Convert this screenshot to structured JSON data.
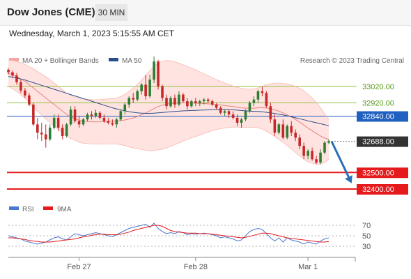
{
  "header": {
    "title": "Dow Jones (CME)",
    "timeframe": "30 MIN"
  },
  "datetime": "Wednesday, March 1, 2023 5:15:55 AM CET",
  "legend": {
    "ma20": "MA 20 + Bollinger Bands",
    "ma50": "MA 50",
    "credit": "Research © 2023 Trading Central",
    "rsi": "RSI",
    "ma9": "9MA"
  },
  "colors": {
    "support": "#e41a1c",
    "pivot": "#2060c0",
    "resistance": "#8fbf3f",
    "current": "#333333",
    "candle_up": "#2e7d32",
    "candle_down": "#c62828",
    "band": "#ffd9d6"
  },
  "chart_data": {
    "type": "candlestick",
    "x_ticks": [
      "Feb 27",
      "Feb 28",
      "Mar 1"
    ],
    "y_range": [
      32320,
      33120
    ],
    "levels": [
      {
        "label": "33020.00",
        "value": 33020,
        "kind": "resistance"
      },
      {
        "label": "32920.00",
        "value": 32920,
        "kind": "resistance"
      },
      {
        "label": "32840.00",
        "value": 32840,
        "kind": "pivot"
      },
      {
        "label": "32688.00",
        "value": 32688,
        "kind": "current"
      },
      {
        "label": "32500.00",
        "value": 32500,
        "kind": "support"
      },
      {
        "label": "32400.00",
        "value": 32400,
        "kind": "support"
      }
    ],
    "candles": [
      [
        33120,
        33130,
        33090,
        33105
      ],
      [
        33105,
        33115,
        33070,
        33085
      ],
      [
        33085,
        33100,
        33030,
        33045
      ],
      [
        33045,
        33060,
        32980,
        32995
      ],
      [
        32995,
        33010,
        32950,
        32965
      ],
      [
        32965,
        32980,
        32900,
        32910
      ],
      [
        32910,
        32920,
        32780,
        32790
      ],
      [
        32790,
        32830,
        32700,
        32740
      ],
      [
        32740,
        32800,
        32690,
        32730
      ],
      [
        32730,
        32790,
        32650,
        32700
      ],
      [
        32700,
        32790,
        32690,
        32770
      ],
      [
        32770,
        32850,
        32760,
        32830
      ],
      [
        32830,
        32850,
        32750,
        32770
      ],
      [
        32770,
        32790,
        32700,
        32720
      ],
      [
        32720,
        32800,
        32710,
        32790
      ],
      [
        32790,
        32900,
        32780,
        32880
      ],
      [
        32880,
        32900,
        32800,
        32810
      ],
      [
        32810,
        32840,
        32770,
        32790
      ],
      [
        32790,
        32830,
        32780,
        32820
      ],
      [
        32820,
        32860,
        32810,
        32850
      ],
      [
        32850,
        32870,
        32820,
        32840
      ],
      [
        32840,
        32880,
        32830,
        32860
      ],
      [
        32860,
        32870,
        32820,
        32830
      ],
      [
        32830,
        32850,
        32800,
        32810
      ],
      [
        32810,
        32830,
        32790,
        32800
      ],
      [
        32800,
        32820,
        32780,
        32790
      ],
      [
        32790,
        32830,
        32770,
        32820
      ],
      [
        32820,
        32880,
        32810,
        32870
      ],
      [
        32870,
        32920,
        32850,
        32910
      ],
      [
        32910,
        32960,
        32890,
        32950
      ],
      [
        32950,
        32980,
        32920,
        32940
      ],
      [
        32940,
        33000,
        32930,
        32990
      ],
      [
        32990,
        33040,
        32970,
        33030
      ],
      [
        33030,
        33090,
        32940,
        32960
      ],
      [
        32960,
        33090,
        32950,
        33060
      ],
      [
        33060,
        33200,
        33040,
        33170
      ],
      [
        33170,
        33180,
        33000,
        33020
      ],
      [
        33020,
        33030,
        32930,
        32950
      ],
      [
        32950,
        32970,
        32880,
        32900
      ],
      [
        32900,
        32960,
        32890,
        32950
      ],
      [
        32950,
        32970,
        32890,
        32910
      ],
      [
        32910,
        32990,
        32900,
        32970
      ],
      [
        32970,
        32980,
        32920,
        32930
      ],
      [
        32930,
        32950,
        32880,
        32900
      ],
      [
        32900,
        32940,
        32890,
        32930
      ],
      [
        32930,
        32950,
        32900,
        32920
      ],
      [
        32920,
        32940,
        32900,
        32930
      ],
      [
        32930,
        32950,
        32910,
        32940
      ],
      [
        32940,
        32950,
        32920,
        32930
      ],
      [
        32930,
        32940,
        32900,
        32910
      ],
      [
        32910,
        32920,
        32880,
        32890
      ],
      [
        32890,
        32900,
        32850,
        32860
      ],
      [
        32860,
        32880,
        32840,
        32870
      ],
      [
        32870,
        32880,
        32830,
        32850
      ],
      [
        32850,
        32870,
        32820,
        32830
      ],
      [
        32830,
        32850,
        32780,
        32800
      ],
      [
        32800,
        32830,
        32770,
        32820
      ],
      [
        32820,
        32880,
        32810,
        32870
      ],
      [
        32870,
        32930,
        32860,
        32920
      ],
      [
        32920,
        32960,
        32900,
        32940
      ],
      [
        32940,
        33000,
        32920,
        32990
      ],
      [
        32990,
        33020,
        32960,
        32980
      ],
      [
        32980,
        32990,
        32890,
        32900
      ],
      [
        32900,
        32920,
        32800,
        32820
      ],
      [
        32820,
        32850,
        32720,
        32740
      ],
      [
        32740,
        32800,
        32730,
        32790
      ],
      [
        32790,
        32820,
        32700,
        32710
      ],
      [
        32710,
        32790,
        32700,
        32780
      ],
      [
        32780,
        32810,
        32720,
        32740
      ],
      [
        32740,
        32760,
        32690,
        32710
      ],
      [
        32710,
        32730,
        32640,
        32660
      ],
      [
        32660,
        32680,
        32580,
        32600
      ],
      [
        32600,
        32640,
        32580,
        32630
      ],
      [
        32630,
        32650,
        32570,
        32580
      ],
      [
        32580,
        32600,
        32550,
        32560
      ],
      [
        32560,
        32640,
        32550,
        32620
      ],
      [
        32620,
        32690,
        32610,
        32680
      ],
      [
        32680,
        32700,
        32670,
        32690
      ]
    ],
    "ma20": [
      33100,
      33090,
      33080,
      33065,
      33050,
      33030,
      33010,
      32990,
      32970,
      32950,
      32930,
      32910,
      32890,
      32870,
      32850,
      32835,
      32825,
      32815,
      32810,
      32808,
      32806,
      32805,
      32806,
      32807,
      32808,
      32809,
      32811,
      32813,
      32817,
      32822,
      32829,
      32838,
      32848,
      32860,
      32872,
      32886,
      32898,
      32906,
      32912,
      32916,
      32918,
      32919,
      32920,
      32920,
      32919,
      32918,
      32917,
      32916,
      32914,
      32912,
      32910,
      32907,
      32904,
      32901,
      32898,
      32894,
      32890,
      32888,
      32887,
      32888,
      32890,
      32891,
      32889,
      32885,
      32878,
      32870,
      32860,
      32848,
      32835,
      32820,
      32804,
      32786,
      32768,
      32752,
      32736,
      32720,
      32708,
      32700
    ],
    "bb_upper": [
      33180,
      33175,
      33170,
      33162,
      33152,
      33140,
      33126,
      33110,
      33094,
      33078,
      33060,
      33040,
      33020,
      33000,
      32980,
      32965,
      32955,
      32948,
      32944,
      32942,
      32940,
      32939,
      32940,
      32942,
      32944,
      32946,
      32950,
      32958,
      32972,
      32990,
      33010,
      33032,
      33058,
      33086,
      33114,
      33140,
      33160,
      33172,
      33176,
      33174,
      33168,
      33160,
      33150,
      33140,
      33130,
      33120,
      33108,
      33096,
      33084,
      33072,
      33060,
      33050,
      33040,
      33030,
      33022,
      33014,
      33008,
      33004,
      33002,
      33004,
      33010,
      33020,
      33030,
      33036,
      33040,
      33040,
      33038,
      33034,
      33028,
      33020,
      33008,
      32992,
      32972,
      32948,
      32922,
      32890,
      32856,
      32820
    ],
    "bb_lower": [
      33020,
      33005,
      32990,
      32968,
      32948,
      32920,
      32894,
      32870,
      32846,
      32822,
      32800,
      32780,
      32760,
      32740,
      32720,
      32705,
      32695,
      32682,
      32676,
      32674,
      32672,
      32671,
      32672,
      32672,
      32672,
      32672,
      32672,
      32668,
      32662,
      32654,
      32648,
      32644,
      32638,
      32634,
      32630,
      32632,
      32636,
      32640,
      32648,
      32658,
      32668,
      32678,
      32690,
      32700,
      32708,
      32716,
      32726,
      32736,
      32744,
      32752,
      32760,
      32764,
      32768,
      32772,
      32774,
      32774,
      32772,
      32772,
      32772,
      32772,
      32770,
      32762,
      32748,
      32734,
      32716,
      32700,
      32682,
      32662,
      32642,
      32620,
      32600,
      32580,
      32564,
      32556,
      32550,
      32550,
      32560,
      32580
    ],
    "ma50": [
      33080,
      33075,
      33070,
      33064,
      33058,
      33050,
      33042,
      33034,
      33026,
      33018,
      33010,
      33002,
      32994,
      32986,
      32978,
      32970,
      32962,
      32954,
      32946,
      32938,
      32930,
      32922,
      32914,
      32906,
      32898,
      32890,
      32884,
      32878,
      32872,
      32867,
      32863,
      32860,
      32858,
      32857,
      32857,
      32858,
      32860,
      32862,
      32864,
      32866,
      32868,
      32870,
      32872,
      32873,
      32874,
      32875,
      32876,
      32877,
      32878,
      32879,
      32880,
      32880,
      32880,
      32879,
      32878,
      32876,
      32874,
      32872,
      32870,
      32869,
      32868,
      32866,
      32863,
      32860,
      32856,
      32852,
      32847,
      32842,
      32836,
      32830,
      32824,
      32818,
      32812,
      32806,
      32800,
      32794,
      32788,
      32782
    ],
    "rsi": [
      50,
      48,
      46,
      44,
      40,
      38,
      36,
      34,
      36,
      38,
      42,
      46,
      48,
      44,
      42,
      48,
      54,
      52,
      50,
      52,
      54,
      56,
      54,
      52,
      50,
      48,
      52,
      56,
      60,
      64,
      66,
      68,
      70,
      72,
      66,
      74,
      64,
      58,
      54,
      56,
      54,
      58,
      56,
      52,
      54,
      53,
      54,
      55,
      54,
      52,
      50,
      46,
      48,
      46,
      44,
      40,
      42,
      50,
      58,
      62,
      64,
      62,
      54,
      46,
      40,
      46,
      38,
      46,
      42,
      40,
      38,
      34,
      38,
      36,
      34,
      40,
      44,
      46
    ],
    "rsi_ma9": [
      46,
      46,
      45,
      44,
      43,
      41,
      40,
      39,
      38,
      38,
      38,
      39,
      40,
      41,
      42,
      43,
      44,
      46,
      48,
      49,
      51,
      52,
      53,
      53,
      52,
      52,
      52,
      53,
      55,
      57,
      60,
      62,
      64,
      66,
      68,
      70,
      70,
      68,
      64,
      60,
      58,
      57,
      56,
      55,
      55,
      55,
      54,
      54,
      54,
      53,
      52,
      51,
      50,
      49,
      48,
      47,
      46,
      47,
      49,
      51,
      53,
      55,
      55,
      54,
      52,
      50,
      48,
      46,
      45,
      44,
      43,
      42,
      41,
      40,
      39,
      38,
      38,
      39
    ],
    "rsi_levels": [
      70,
      50,
      30
    ],
    "forecast": {
      "from": 32688,
      "to": 32450
    }
  }
}
